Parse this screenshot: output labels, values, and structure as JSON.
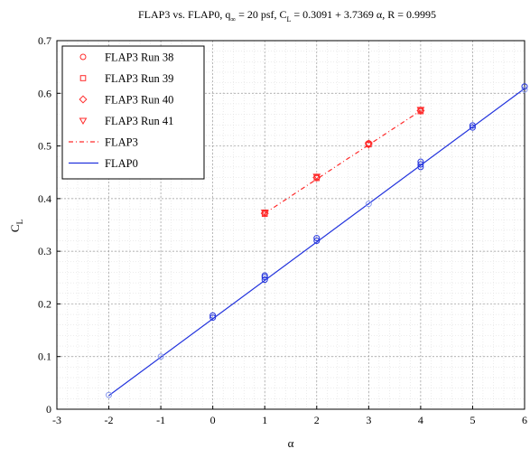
{
  "chart_data": {
    "type": "scatter",
    "title": {
      "p1": "FLAP3 vs. FLAP0, q",
      "p1_sub": "∞",
      "p2": " = 20 psf, C",
      "p2_sub": "L",
      "p3": " = 0.3091 + 3.7369  α, R = 0.9995"
    },
    "xlabel": "α",
    "ylabel": "C",
    "ylabel_sub": "L",
    "xlim": [
      -3,
      6
    ],
    "ylim": [
      0,
      0.7
    ],
    "xticks": [
      -3,
      -2,
      -1,
      0,
      1,
      2,
      3,
      4,
      5,
      6
    ],
    "yticks": [
      0,
      0.1,
      0.2,
      0.3,
      0.4,
      0.5,
      0.6,
      0.7
    ],
    "grid": true,
    "legend_position": "top-left",
    "colors": {
      "flap3": "#ff2a2a",
      "flap0": "#2233dd",
      "flap0_light": "#8899ee"
    },
    "legend": [
      {
        "label": "FLAP3 Run 38",
        "marker": "circle"
      },
      {
        "label": "FLAP3 Run 39",
        "marker": "square"
      },
      {
        "label": "FLAP3 Run 40",
        "marker": "diamond"
      },
      {
        "label": "FLAP3 Run 41",
        "marker": "triangle"
      },
      {
        "label": "FLAP3",
        "marker": "dashed-line"
      },
      {
        "label": "FLAP0",
        "marker": "solid-line"
      }
    ],
    "series": [
      {
        "name": "FLAP3 Run 38",
        "marker": "circle",
        "x": [
          1,
          2,
          3,
          4
        ],
        "y": [
          0.373,
          0.441,
          0.505,
          0.568
        ]
      },
      {
        "name": "FLAP3 Run 39",
        "marker": "square",
        "x": [
          1,
          2,
          3,
          4
        ],
        "y": [
          0.371,
          0.439,
          0.503,
          0.566
        ]
      },
      {
        "name": "FLAP3 Run 40",
        "marker": "diamond",
        "x": [
          1,
          2,
          3,
          4
        ],
        "y": [
          0.372,
          0.44,
          0.504,
          0.567
        ]
      },
      {
        "name": "FLAP3 Run 41",
        "marker": "triangle",
        "x": [
          1,
          2,
          3,
          4
        ],
        "y": [
          0.374,
          0.442,
          0.502,
          0.569
        ]
      },
      {
        "name": "FLAP3",
        "line": "dashed",
        "x": [
          1,
          4
        ],
        "y": [
          0.372,
          0.567
        ]
      },
      {
        "name": "FLAP0",
        "line": "solid",
        "x": [
          -2,
          6
        ],
        "y": [
          0.026,
          0.609
        ]
      },
      {
        "name": "FLAP0 data",
        "marker": "circle",
        "x": [
          -2,
          -1,
          0,
          0,
          1,
          1,
          1,
          2,
          2,
          3,
          4,
          4,
          4,
          5,
          5,
          6,
          6
        ],
        "y": [
          0.027,
          0.1,
          0.174,
          0.178,
          0.246,
          0.251,
          0.254,
          0.32,
          0.325,
          0.39,
          0.46,
          0.465,
          0.47,
          0.535,
          0.539,
          0.607,
          0.613
        ]
      }
    ]
  }
}
